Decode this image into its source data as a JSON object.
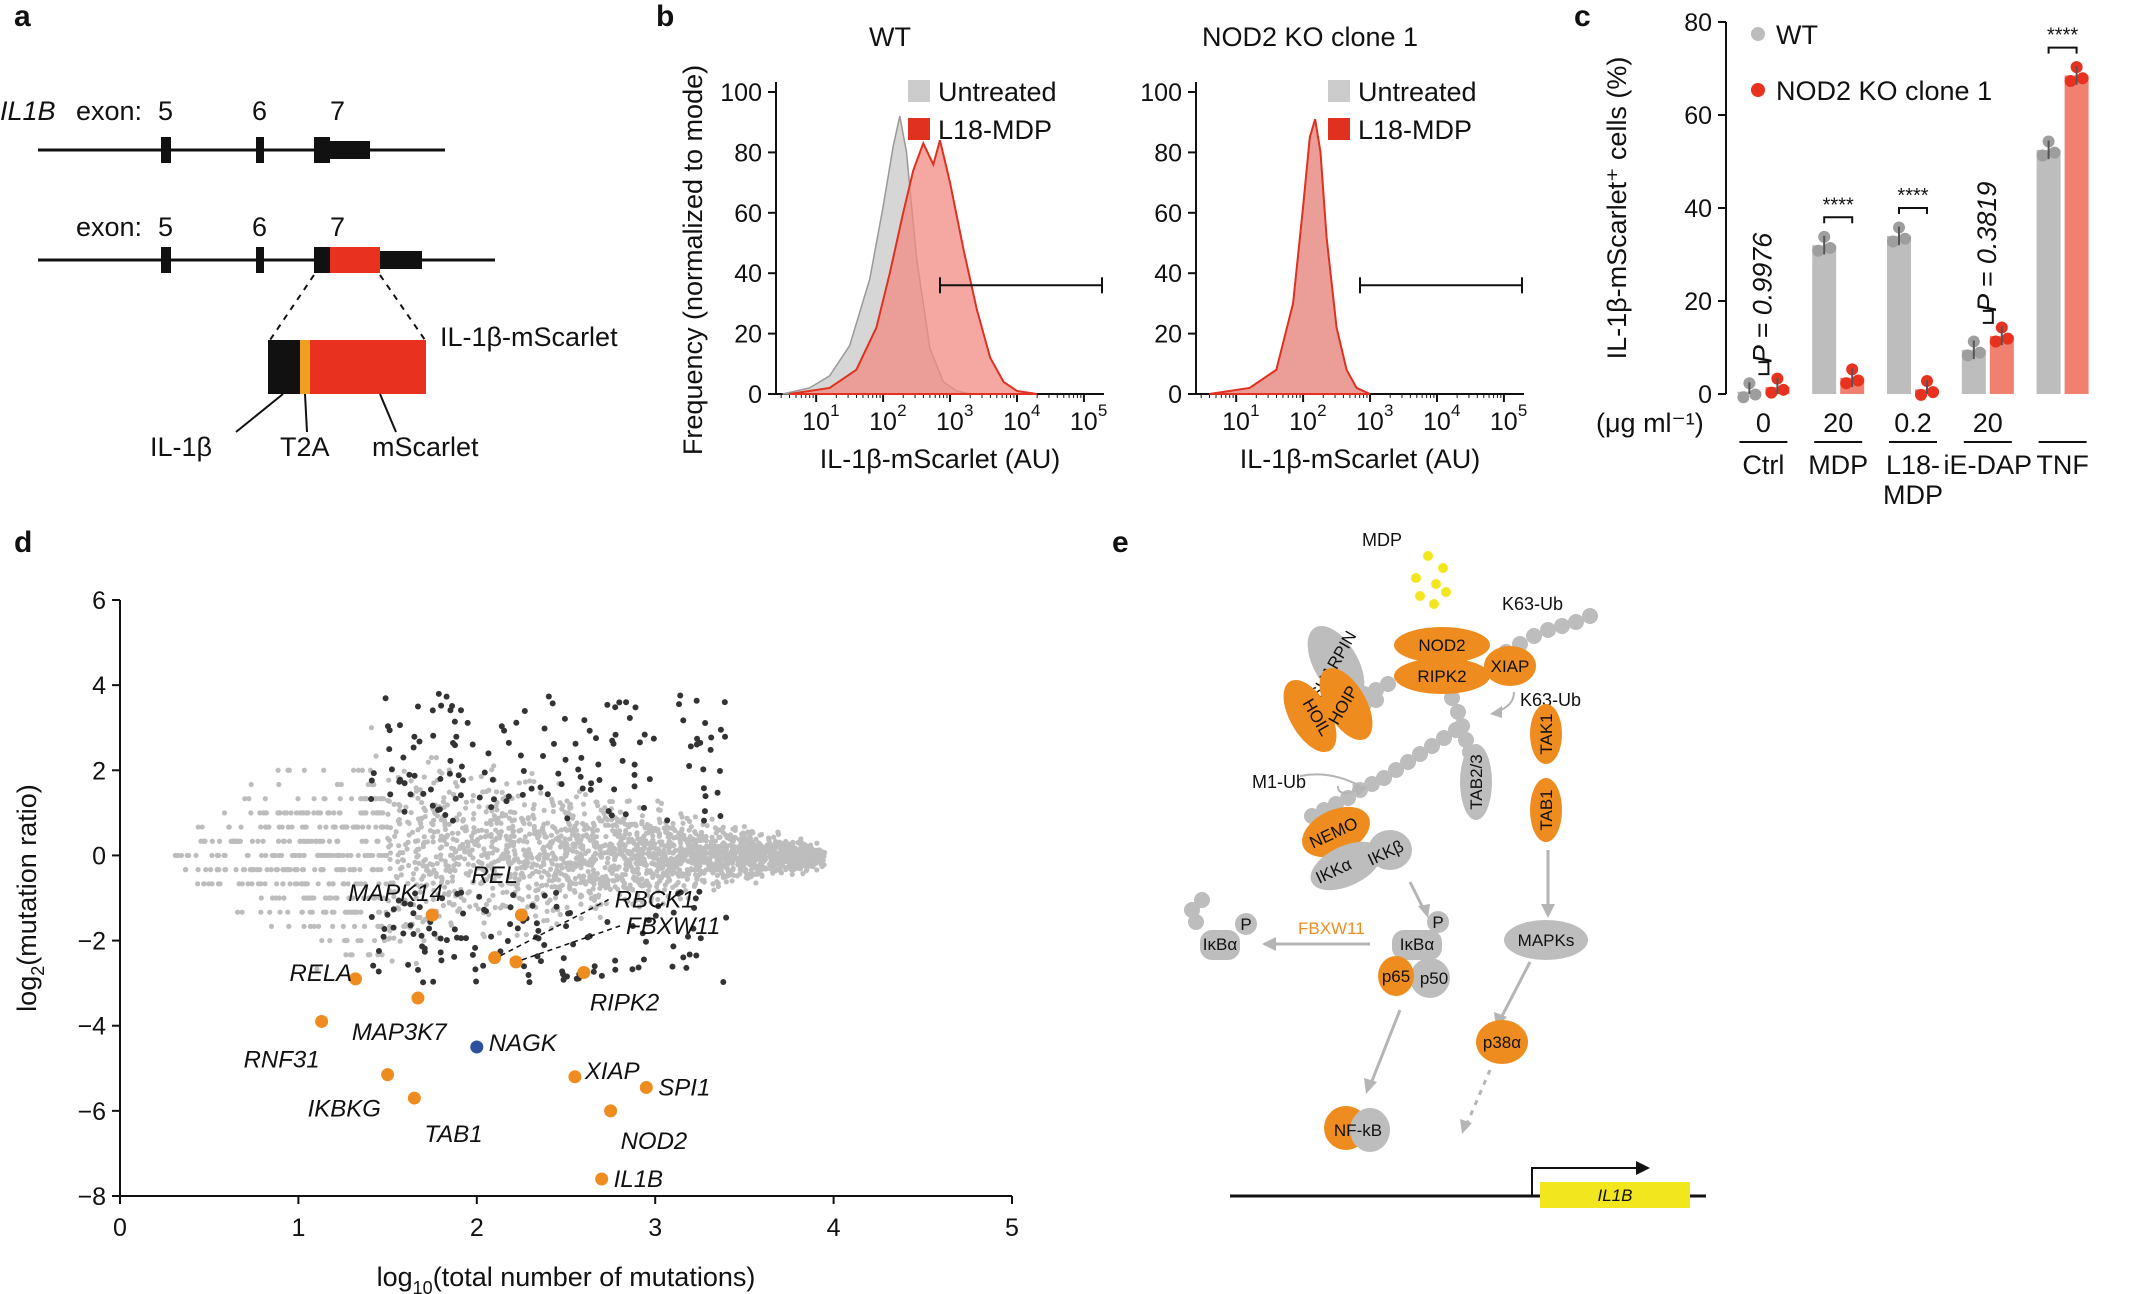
{
  "panels": {
    "a": "a",
    "b": "b",
    "c": "c",
    "d": "d",
    "e": "e"
  },
  "panel_a": {
    "gene": "IL1B",
    "exon_word": "exon:",
    "exons": [
      "5",
      "6",
      "7"
    ],
    "exons2": [
      "5",
      "6",
      "7"
    ],
    "fusion": "IL-1β-mScarlet",
    "parts": [
      "IL-1β",
      "T2A",
      "mScarlet"
    ]
  },
  "panel_b": {
    "ylabel": "Frequency (normalized to mode)",
    "xlabel": "IL-1β-mScarlet (AU)",
    "yticks": [
      "0",
      "20",
      "40",
      "60",
      "80",
      "100"
    ],
    "xticks": [
      "10",
      "10",
      "10",
      "10",
      "10"
    ],
    "xexp": [
      "1",
      "2",
      "3",
      "4",
      "5"
    ],
    "plots": [
      {
        "title": "WT",
        "legend": [
          "Untreated",
          "L18-MDP"
        ]
      },
      {
        "title": "NOD2 KO clone 1",
        "legend": [
          "Untreated",
          "L18-MDP"
        ]
      }
    ],
    "colors": {
      "untreated": "#cccccc",
      "treated": "#f28b82",
      "line": "#e03020"
    }
  },
  "chart_data": [
    {
      "type": "bar",
      "panel": "c",
      "title": "",
      "ylabel": "IL-1β-mScarlet⁺ cells (%)",
      "ylim": [
        0,
        80
      ],
      "yticks": [
        "0",
        "20",
        "40",
        "60",
        "80"
      ],
      "unit_label": "(μg ml⁻¹)",
      "doses": [
        "0",
        "20",
        "0.2",
        "20",
        ""
      ],
      "categories": [
        "Ctrl",
        "MDP",
        "L18-",
        "iE-DAP",
        "TNF"
      ],
      "category_line2": [
        "",
        "",
        "MDP",
        "",
        ""
      ],
      "series": [
        {
          "name": "WT",
          "color": "#bdbdbd",
          "values": [
            0.5,
            32,
            34,
            9.5,
            52.5
          ]
        },
        {
          "name": "NOD2 KO clone 1",
          "color": "#f08070",
          "values": [
            1.5,
            3.5,
            1,
            12.5,
            68.5
          ]
        }
      ],
      "stats": [
        "P = 0.9976",
        "****",
        "****",
        "P = 0.3819",
        "****"
      ]
    },
    {
      "type": "scatter",
      "panel": "d",
      "xlabel": "log",
      "xlabel_sub": "10",
      "xlabel_rest": "(total number of mutations)",
      "ylabel": "log",
      "ylabel_sub": "2",
      "ylabel_rest": "(mutation ratio)",
      "xlim": [
        0,
        5
      ],
      "ylim": [
        -8,
        6
      ],
      "xticks": [
        "0",
        "1",
        "2",
        "3",
        "4",
        "5"
      ],
      "yticks": [
        "−8",
        "−6",
        "−4",
        "−2",
        "0",
        "2",
        "4",
        "6"
      ],
      "highlight": [
        {
          "gene": "MAPK14",
          "x": 1.75,
          "y": -1.4
        },
        {
          "gene": "REL",
          "x": 2.25,
          "y": -1.4
        },
        {
          "gene": "RBCK1",
          "x": 2.1,
          "y": -2.4
        },
        {
          "gene": "FBXW11",
          "x": 2.22,
          "y": -2.5
        },
        {
          "gene": "RELA",
          "x": 1.32,
          "y": -2.9
        },
        {
          "gene": "RIPK2",
          "x": 2.6,
          "y": -2.75
        },
        {
          "gene": "MAP3K7",
          "x": 1.67,
          "y": -3.35
        },
        {
          "gene": "RNF31",
          "x": 1.13,
          "y": -3.9
        },
        {
          "gene": "NAGK",
          "x": 2.0,
          "y": -4.5
        },
        {
          "gene": "XIAP",
          "x": 2.55,
          "y": -5.2
        },
        {
          "gene": "SPI1",
          "x": 2.95,
          "y": -5.45
        },
        {
          "gene": "IKBKG",
          "x": 1.5,
          "y": -5.15
        },
        {
          "gene": "TAB1",
          "x": 1.65,
          "y": -5.7
        },
        {
          "gene": "NOD2",
          "x": 2.75,
          "y": -6.0
        },
        {
          "gene": "IL1B",
          "x": 2.7,
          "y": -7.6
        }
      ],
      "colors": {
        "bg": "#bdbdbd",
        "sig": "#333333",
        "hit": "#ef8c1f",
        "control": "#2c4f9e"
      }
    }
  ],
  "panel_e": {
    "mdp": "MDP",
    "k63a": "K63-Ub",
    "k63b": "K63-Ub",
    "m1": "M1-Ub",
    "nodes": {
      "sharpin": "SHARPIN",
      "hoil": "HOIL",
      "hoip": "HOIP",
      "nod2": "NOD2",
      "ripk2": "RIPK2",
      "xiap": "XIAP",
      "tab23": "TAB2/3",
      "tak1": "TAK1",
      "tab1": "TAB1",
      "nemo": "NEMO",
      "ikka": "IKKα",
      "ikkb": "IKKβ",
      "ikba1": "IκBα",
      "ikba2": "IκBα",
      "p": "P",
      "p2": "P",
      "p65": "p65",
      "p50": "p50",
      "mapks": "MAPKs",
      "p38": "p38α",
      "nfkb": "NF-kB",
      "il1b": "IL1B"
    },
    "fbxw11": "FBXW11"
  }
}
